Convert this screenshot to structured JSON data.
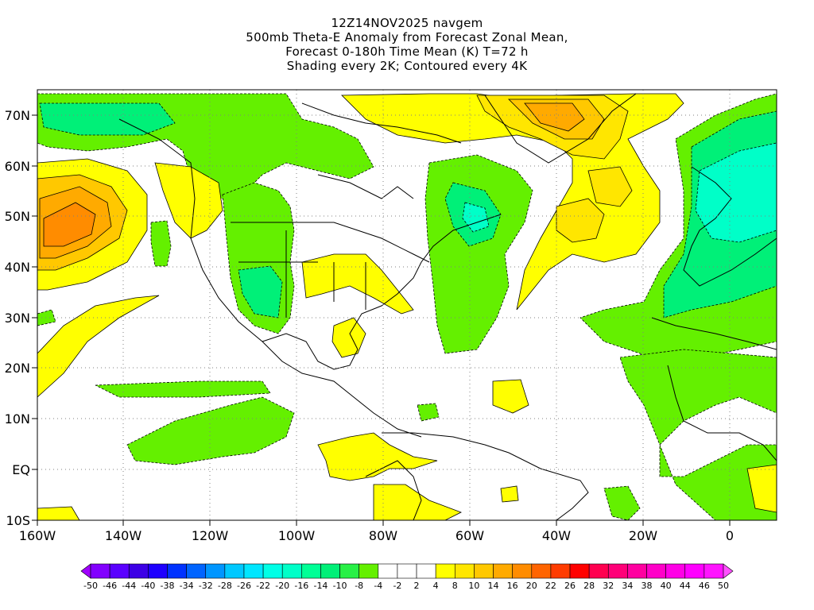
{
  "title": {
    "line1": "12Z14NOV2025 navgem",
    "line2": "500mb Theta-E Anomaly from Forecast Zonal Mean,",
    "line3": "Forecast 0-180h Time Mean (K) T=72 h",
    "line4": "Shading every 2K; Contoured every 4K"
  },
  "map": {
    "lon_ticks": [
      "160W",
      "140W",
      "120W",
      "100W",
      "80W",
      "60W",
      "40W",
      "20W",
      "0"
    ],
    "lat_ticks": [
      "70N",
      "60N",
      "50N",
      "40N",
      "30N",
      "20N",
      "10N",
      "EQ",
      "10S"
    ]
  },
  "colorbar": {
    "labels": [
      "-50",
      "-46",
      "-44",
      "-40",
      "-38",
      "-34",
      "-32",
      "-28",
      "-26",
      "-22",
      "-20",
      "-16",
      "-14",
      "-10",
      "-8",
      "-4",
      "-2",
      "2",
      "4",
      "8",
      "10",
      "14",
      "16",
      "20",
      "22",
      "26",
      "28",
      "32",
      "34",
      "38",
      "40",
      "44",
      "46",
      "50"
    ],
    "colors": [
      "#a000ff",
      "#8200ff",
      "#5a00ff",
      "#3c00e6",
      "#1e00ff",
      "#0032ff",
      "#0064ff",
      "#0096ff",
      "#00c8ff",
      "#00e6ff",
      "#00ffe6",
      "#00ffc8",
      "#00ff96",
      "#00f078",
      "#28f046",
      "#64f000",
      "#ffffff",
      "#ffffff",
      "#ffffff",
      "#ffff00",
      "#ffe600",
      "#ffc800",
      "#ffaa00",
      "#ff8c00",
      "#ff6400",
      "#ff3c00",
      "#ff0000",
      "#ff0050",
      "#ff0078",
      "#ff00a0",
      "#ff00c8",
      "#ff00e6",
      "#ff00ff",
      "#ff14ff",
      "#ff50ff"
    ]
  }
}
